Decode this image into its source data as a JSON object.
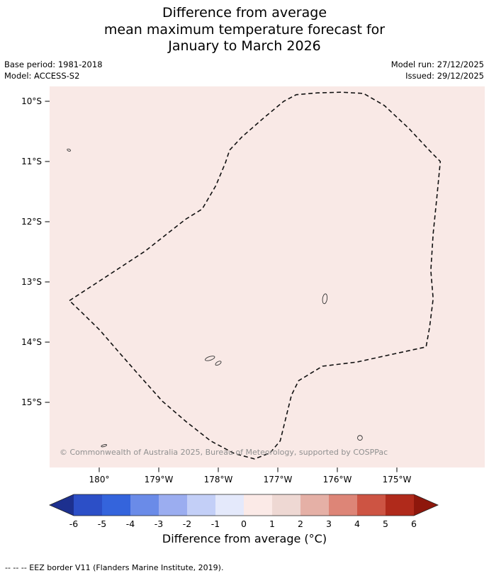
{
  "title": {
    "line1": "Difference from average",
    "line2": "mean maximum temperature forecast for",
    "line3": "January to March 2026"
  },
  "meta": {
    "base_period": "Base period: 1981-2018",
    "model": "Model: ACCESS-S2",
    "model_run": "Model run: 27/12/2025",
    "issued": "Issued: 29/12/2025"
  },
  "map": {
    "background_color": "#f9e9e6",
    "border_color": "#111111",
    "copyright": "© Commonwealth of Australia 2025, Bureau of Meteorology, supported by COSPPac",
    "lat_ticks": [
      {
        "label": "10°S",
        "value": 10
      },
      {
        "label": "11°S",
        "value": 11
      },
      {
        "label": "12°S",
        "value": 12
      },
      {
        "label": "13°S",
        "value": 13
      },
      {
        "label": "14°S",
        "value": 14
      },
      {
        "label": "15°S",
        "value": 15
      }
    ],
    "lon_ticks": [
      {
        "label": "180°",
        "value": 0
      },
      {
        "label": "179°W",
        "value": 1
      },
      {
        "label": "178°W",
        "value": 2
      },
      {
        "label": "177°W",
        "value": 3
      },
      {
        "label": "176°W",
        "value": 4
      },
      {
        "label": "175°W",
        "value": 5
      }
    ],
    "eez_border": [
      [
        -0.5,
        13.31
      ],
      [
        0.12,
        12.91
      ],
      [
        0.77,
        12.49
      ],
      [
        1.45,
        11.96
      ],
      [
        1.73,
        11.79
      ],
      [
        1.96,
        11.4
      ],
      [
        2.12,
        11.02
      ],
      [
        2.19,
        10.81
      ],
      [
        2.4,
        10.59
      ],
      [
        2.76,
        10.28
      ],
      [
        3.1,
        10.0
      ],
      [
        3.31,
        9.89
      ],
      [
        3.67,
        9.86
      ],
      [
        4.07,
        9.85
      ],
      [
        4.44,
        9.87
      ],
      [
        4.79,
        10.07
      ],
      [
        5.2,
        10.45
      ],
      [
        5.55,
        10.82
      ],
      [
        5.73,
        11.0
      ],
      [
        5.67,
        11.61
      ],
      [
        5.61,
        12.2
      ],
      [
        5.57,
        12.81
      ],
      [
        5.61,
        13.28
      ],
      [
        5.55,
        13.75
      ],
      [
        5.49,
        14.08
      ],
      [
        4.98,
        14.19
      ],
      [
        4.33,
        14.33
      ],
      [
        3.75,
        14.4
      ],
      [
        3.35,
        14.64
      ],
      [
        3.23,
        14.88
      ],
      [
        3.13,
        15.28
      ],
      [
        3.04,
        15.64
      ],
      [
        2.87,
        15.84
      ],
      [
        2.61,
        15.94
      ],
      [
        2.27,
        15.85
      ],
      [
        1.87,
        15.64
      ],
      [
        1.46,
        15.32
      ],
      [
        1.06,
        14.98
      ],
      [
        0.68,
        14.56
      ],
      [
        0.35,
        14.19
      ],
      [
        0.01,
        13.8
      ],
      [
        -0.29,
        13.51
      ]
    ],
    "islands": [
      {
        "name": "niulakita",
        "t": -0.51,
        "lat": 10.81,
        "rx": 2.5,
        "ry": 1.4,
        "rot": 20
      },
      {
        "name": "wallis",
        "t": 3.79,
        "lat": 13.28,
        "rx": 3.2,
        "ry": 7.0,
        "rot": 8
      },
      {
        "name": "futuna",
        "t": 1.86,
        "lat": 14.27,
        "rx": 7.0,
        "ry": 2.6,
        "rot": -18
      },
      {
        "name": "alofi",
        "t": 2.0,
        "lat": 14.35,
        "rx": 4.5,
        "ry": 2.2,
        "rot": -30
      },
      {
        "name": "cikobia",
        "t": 0.08,
        "lat": 15.72,
        "rx": 4.0,
        "ry": 1.3,
        "rot": -15
      },
      {
        "name": "niuafoou",
        "t": 4.38,
        "lat": 15.59,
        "rx": 3.4,
        "ry": 3.4,
        "rot": 0
      }
    ]
  },
  "colorbar": {
    "title": "Difference from average (°C)",
    "range": [
      -6,
      6
    ],
    "tick_labels": [
      "-6",
      "-5",
      "-4",
      "-3",
      "-2",
      "-1",
      "0",
      "1",
      "2",
      "3",
      "4",
      "5",
      "6"
    ],
    "segment_colors": [
      "#2c4fc7",
      "#3464dc",
      "#6a8be8",
      "#9badf0",
      "#c3cff7",
      "#e4e9fb",
      "#fbeae7",
      "#eed8d3",
      "#e5b0a6",
      "#dd8577",
      "#cd5443",
      "#b02a1b"
    ],
    "arrow_left_color": "#1d308f",
    "arrow_right_color": "#8e170c"
  },
  "footnote": "--  --  -- EEZ border V11 (Flanders Marine Institute, 2019)."
}
